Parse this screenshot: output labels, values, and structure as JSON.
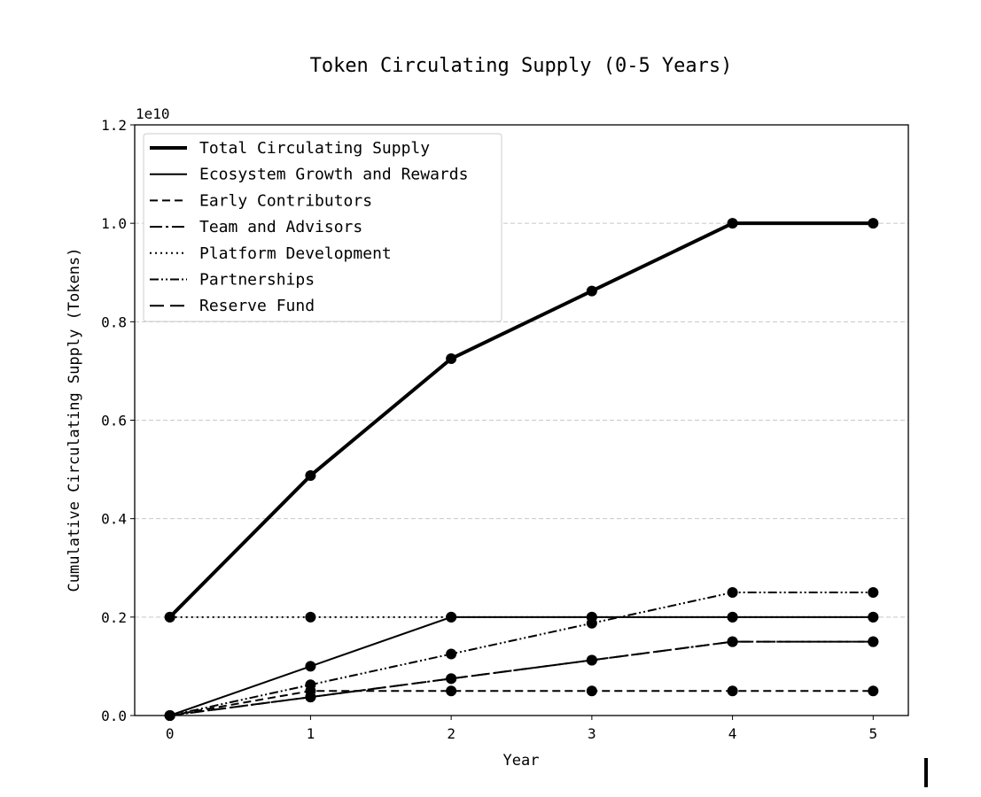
{
  "chart_data": {
    "type": "line",
    "title": "Token Circulating Supply (0-5 Years)",
    "xlabel": "Year",
    "ylabel": "Cumulative Circulating Supply (Tokens)",
    "y_multiplier_label": "1e10",
    "x": [
      0,
      1,
      2,
      3,
      4,
      5
    ],
    "xlim": [
      -0.25,
      5.25
    ],
    "ylim": [
      0,
      12000000000
    ],
    "x_ticks": [
      "0",
      "1",
      "2",
      "3",
      "4",
      "5"
    ],
    "y_tick_values": [
      0,
      2000000000,
      4000000000,
      6000000000,
      8000000000,
      10000000000,
      12000000000
    ],
    "y_ticks": [
      "0.0",
      "0.2",
      "0.4",
      "0.6",
      "0.8",
      "1.0",
      "1.2"
    ],
    "grid": "y-dashed",
    "legend_position": "top-left",
    "series": [
      {
        "name": "Total Circulating Supply",
        "values": [
          2000000000,
          4875000000,
          7250000000,
          8625000000,
          10000000000,
          10000000000
        ],
        "style": "solid",
        "width": 4
      },
      {
        "name": "Ecosystem Growth and Rewards",
        "values": [
          0,
          1000000000,
          2000000000,
          2000000000,
          2000000000,
          2000000000
        ],
        "style": "solid",
        "width": 2
      },
      {
        "name": "Early Contributors",
        "values": [
          0,
          500000000,
          500000000,
          500000000,
          500000000,
          500000000
        ],
        "style": "dashed",
        "width": 2
      },
      {
        "name": "Team and Advisors",
        "values": [
          0,
          375000000,
          750000000,
          1125000000,
          1500000000,
          1500000000
        ],
        "style": "dashdot",
        "width": 2
      },
      {
        "name": "Platform Development",
        "values": [
          2000000000,
          2000000000,
          2000000000,
          2000000000,
          2000000000,
          2000000000
        ],
        "style": "dotted",
        "width": 2
      },
      {
        "name": "Partnerships",
        "values": [
          0,
          625000000,
          1250000000,
          1875000000,
          2500000000,
          2500000000
        ],
        "style": "dashdotdot",
        "width": 2
      },
      {
        "name": "Reserve Fund",
        "values": [
          0,
          375000000,
          750000000,
          1125000000,
          1500000000,
          1500000000
        ],
        "style": "longdash",
        "width": 2
      }
    ]
  }
}
